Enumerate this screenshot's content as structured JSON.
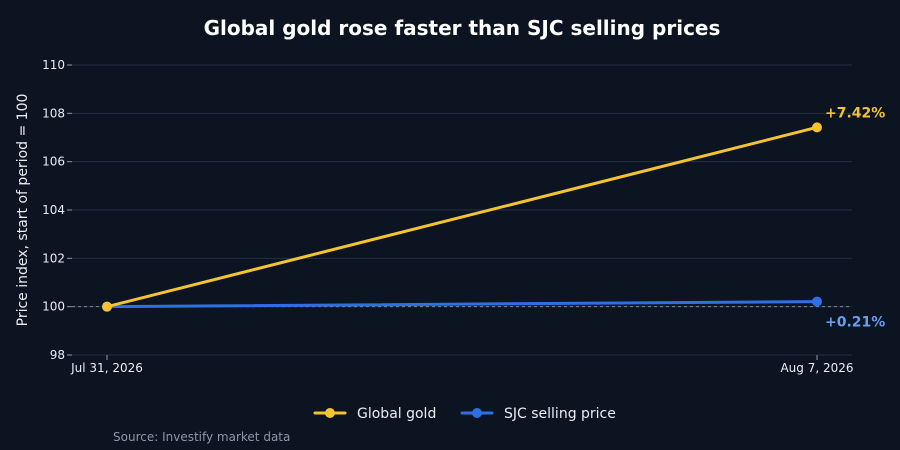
{
  "chart_data": {
    "type": "line",
    "title": "Global gold rose faster than SJC selling prices",
    "xlabel": "",
    "ylabel": "Price index, start of period = 100",
    "x": [
      "Jul 31, 2026",
      "Aug 7, 2026"
    ],
    "ylim": [
      98,
      110
    ],
    "yticks": [
      98,
      100,
      102,
      104,
      106,
      108,
      110
    ],
    "grid": true,
    "baseline": 100,
    "legend_position": "bottom-center",
    "series": [
      {
        "name": "Global gold",
        "values": [
          100,
          107.42
        ],
        "color": "#f4c430",
        "end_label": "+7.42%"
      },
      {
        "name": "SJC selling price",
        "values": [
          100,
          100.21
        ],
        "color": "#2f6fe4",
        "end_label": "+0.21%",
        "end_label_color": "#6a9cf2"
      }
    ],
    "source": "Source: Investify market data"
  }
}
